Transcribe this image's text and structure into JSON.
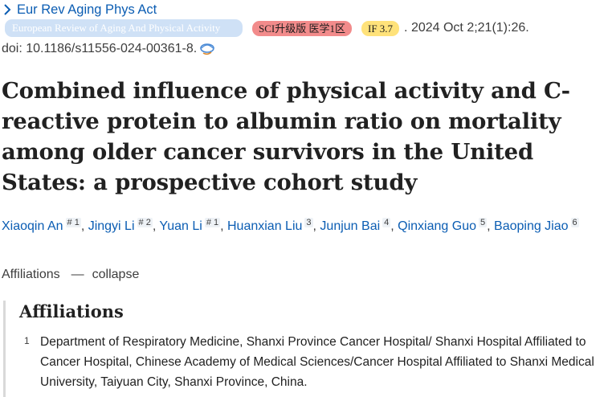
{
  "citation": {
    "journal": "Eur Rev Aging Phys Act",
    "journal_full": "European Review of Aging And Physical Activity",
    "sci_badge": "SCI升级版 医学1区",
    "if_badge": "IF 3.7",
    "date": ". 2024 Oct 2;21(1):26.",
    "doi": "doi: 10.1186/s11556-024-00361-8."
  },
  "article": {
    "title": "Combined influence of physical activity and C-reactive protein to albumin ratio on mortality among older cancer survivors in the United States: a prospective cohort study"
  },
  "authors": [
    {
      "name": "Xiaoqin An",
      "sup": "# 1"
    },
    {
      "name": "Jingyi Li",
      "sup": "# 2"
    },
    {
      "name": "Yuan Li",
      "sup": "# 1"
    },
    {
      "name": "Huanxian Liu",
      "sup": "3"
    },
    {
      "name": "Junjun Bai",
      "sup": "4"
    },
    {
      "name": "Qinxiang Guo",
      "sup": "5"
    },
    {
      "name": "Baoping Jiao",
      "sup": "6"
    }
  ],
  "affiliations": {
    "toggle_label": "Affiliations",
    "toggle_action": "collapse",
    "heading": "Affiliations",
    "items": [
      {
        "num": "1",
        "text": "Department of Respiratory Medicine, Shanxi Province Cancer Hospital/ Shanxi Hospital Affiliated to Cancer Hospital, Chinese Academy of Medical Sciences/Cancer Hospital Affiliated to Shanxi Medical University, Taiyuan City, Shanxi Province, China."
      }
    ]
  },
  "icons": {
    "journal_chevron": "chevron-right-icon",
    "doi_link": "external-link-icon",
    "toggle_dash": "minus-icon"
  },
  "colors": {
    "link": "#0b5db3",
    "journal_badge_bg": "#cfe1f6",
    "sci_badge_bg": "#f28b8b",
    "if_badge_bg": "#ffe27a"
  }
}
